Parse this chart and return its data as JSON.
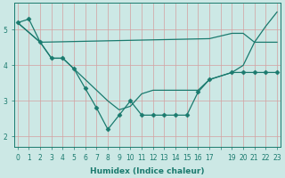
{
  "xlabel": "Humidex (Indice chaleur)",
  "bg_color": "#cce8e5",
  "grid_color": "#d4a0a0",
  "line_color": "#1a7a6e",
  "xlim": [
    -0.3,
    23.3
  ],
  "ylim": [
    1.7,
    5.75
  ],
  "yticks": [
    2,
    3,
    4,
    5
  ],
  "xtick_labels": [
    "0",
    "1",
    "2",
    "3",
    "4",
    "5",
    "6",
    "7",
    "8",
    "9",
    "10",
    "11",
    "12",
    "13",
    "14",
    "15",
    "16",
    "17",
    "",
    "19",
    "20",
    "21",
    "22",
    "23"
  ],
  "line1_x": [
    0,
    1,
    2,
    3,
    4,
    5,
    6,
    7,
    8,
    9,
    10,
    11,
    12,
    13,
    14,
    15,
    16,
    17,
    19,
    20,
    21,
    22,
    23
  ],
  "line1_y": [
    5.2,
    5.3,
    4.65,
    4.2,
    4.2,
    3.9,
    3.35,
    2.8,
    2.2,
    2.6,
    3.0,
    2.6,
    2.6,
    2.6,
    2.6,
    2.6,
    3.25,
    3.6,
    3.8,
    3.8,
    3.8,
    3.8,
    3.8
  ],
  "line2_x": [
    0,
    2,
    17,
    19,
    20,
    21,
    22,
    23
  ],
  "line2_y": [
    5.2,
    4.65,
    4.75,
    4.9,
    4.9,
    4.65,
    5.1,
    5.5
  ],
  "line3_x": [
    0,
    2,
    3,
    4,
    5,
    6,
    7,
    8,
    9,
    10,
    11,
    12,
    13,
    14,
    15,
    16,
    17,
    19,
    20,
    21,
    22,
    23
  ],
  "line3_y": [
    5.2,
    4.65,
    4.2,
    4.2,
    3.9,
    3.6,
    3.3,
    3.0,
    2.75,
    2.85,
    3.2,
    3.3,
    3.3,
    3.3,
    3.3,
    3.3,
    3.6,
    3.8,
    4.0,
    4.65,
    4.65,
    4.65
  ]
}
